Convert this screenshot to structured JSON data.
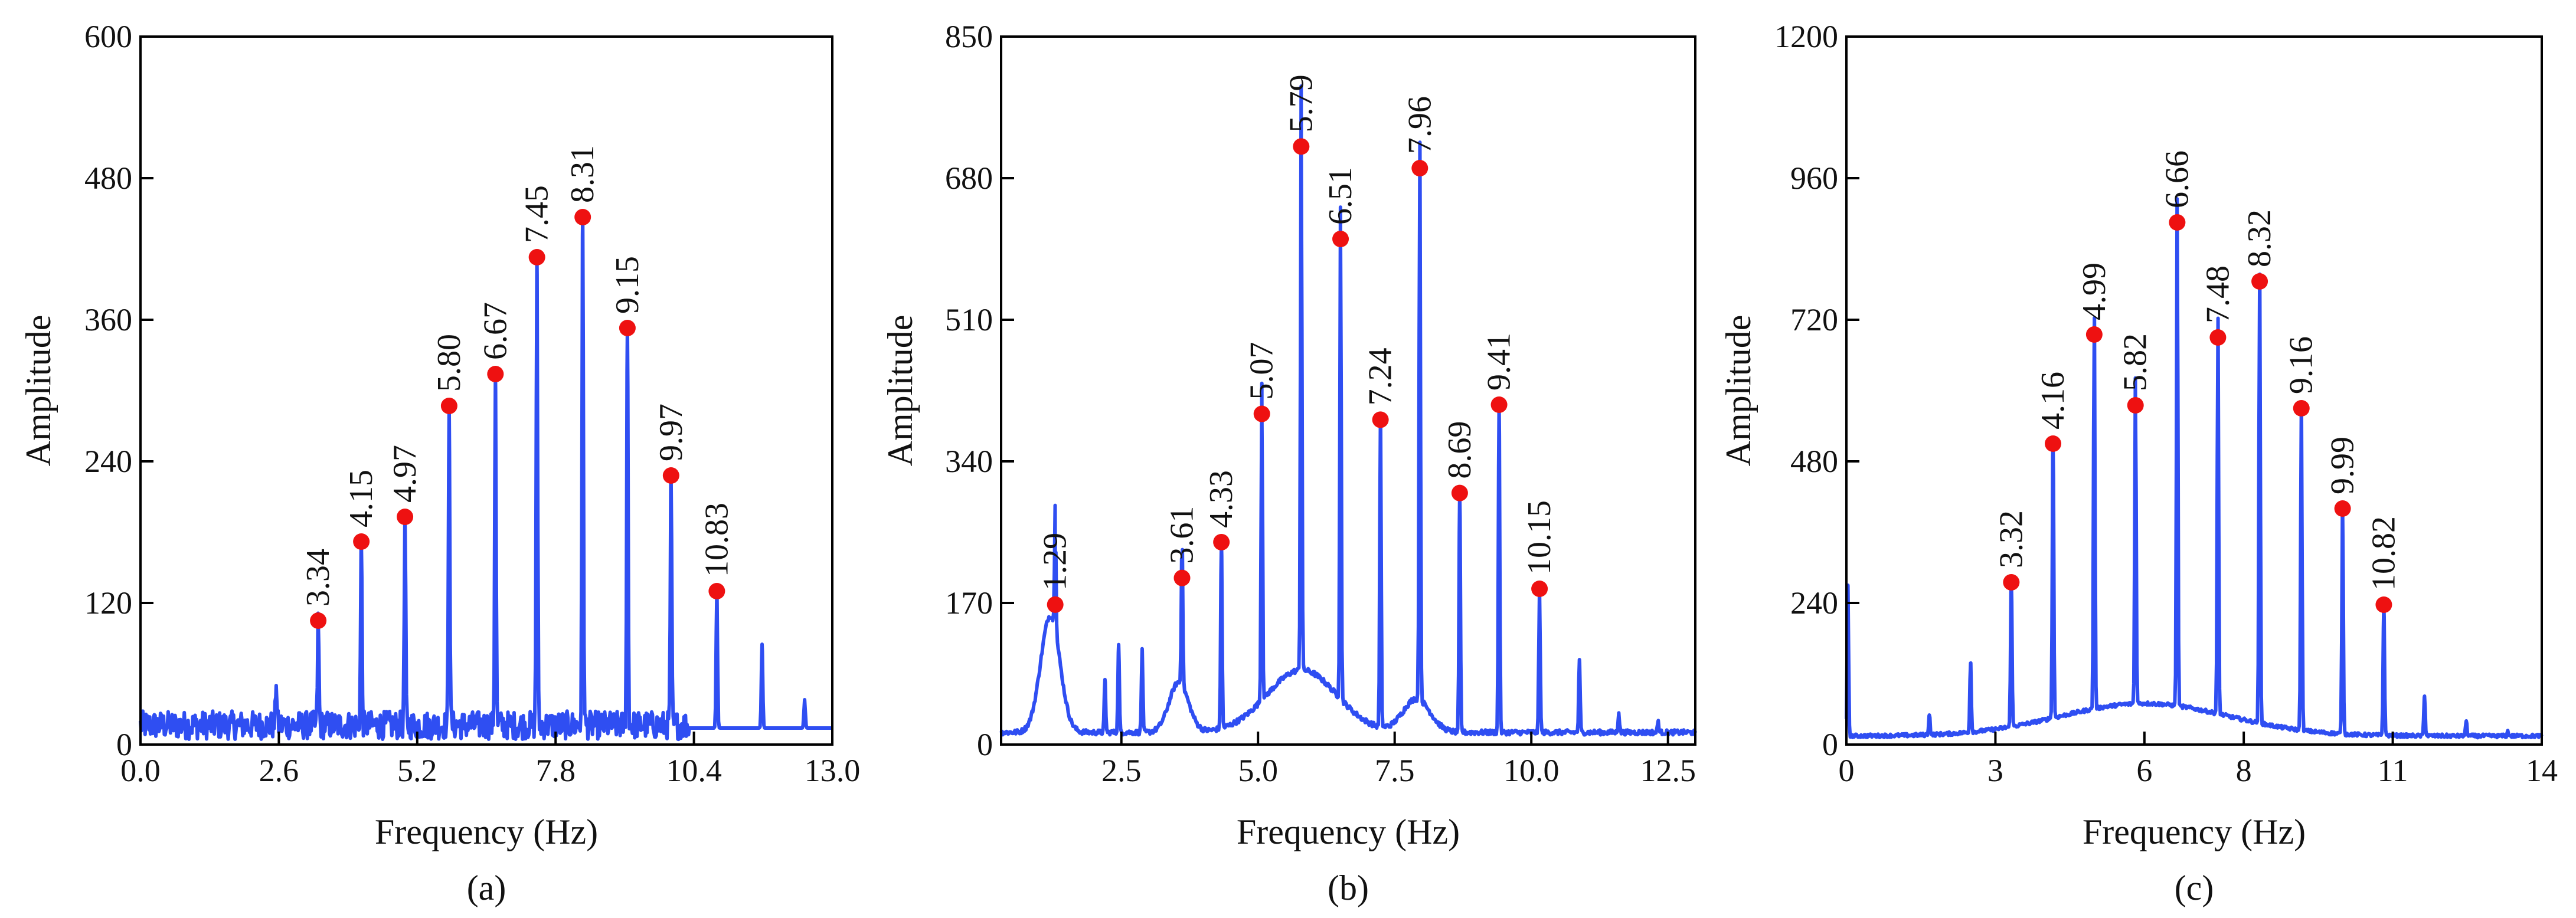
{
  "colors": {
    "line": "#2f4ef2",
    "peak": "#ee1111",
    "axis": "#000000"
  },
  "chart_data": [
    {
      "type": "line",
      "caption": "(a)",
      "xlabel": "Frequency (Hz)",
      "ylabel": "Amplitude",
      "xlim": [
        0,
        13
      ],
      "ylim": [
        0,
        600
      ],
      "xticks": [
        0,
        2.6,
        5.2,
        7.8,
        10.4,
        13
      ],
      "xtick_labels": [
        "0.0",
        "2.6",
        "5.2",
        "7.8",
        "10.4",
        "13.0"
      ],
      "yticks": [
        0,
        120,
        240,
        360,
        480,
        600
      ],
      "ytick_labels": [
        "0",
        "120",
        "240",
        "360",
        "480",
        "600"
      ],
      "peaks": [
        {
          "x": 3.34,
          "y": 105,
          "label": "3.34"
        },
        {
          "x": 4.15,
          "y": 172,
          "label": "4.15"
        },
        {
          "x": 4.97,
          "y": 193,
          "label": "4.97"
        },
        {
          "x": 5.8,
          "y": 287,
          "label": "5.80"
        },
        {
          "x": 6.67,
          "y": 314,
          "label": "6.67"
        },
        {
          "x": 7.45,
          "y": 413,
          "label": "7.45"
        },
        {
          "x": 8.31,
          "y": 447,
          "label": "8.31"
        },
        {
          "x": 9.15,
          "y": 353,
          "label": "9.15"
        },
        {
          "x": 9.97,
          "y": 228,
          "label": "9.97"
        },
        {
          "x": 10.83,
          "y": 130,
          "label": "10.83"
        }
      ],
      "minor_peaks": [
        {
          "x": 11.68,
          "y": 85
        },
        {
          "x": 12.48,
          "y": 38
        },
        {
          "x": 2.55,
          "y": 50
        }
      ],
      "baseline": {
        "level": 14,
        "noise": 12,
        "noise_end": 10.3
      }
    },
    {
      "type": "line",
      "caption": "(b)",
      "xlabel": "Frequency (Hz)",
      "ylabel": "Amplitude",
      "xlim": [
        0.3,
        13
      ],
      "ylim": [
        0,
        850
      ],
      "xticks": [
        2.5,
        5.0,
        7.5,
        10.0,
        12.5
      ],
      "xtick_labels": [
        "2.5",
        "5.0",
        "7.5",
        "10.0",
        "12.5"
      ],
      "yticks": [
        0,
        170,
        340,
        510,
        680,
        850
      ],
      "ytick_labels": [
        "0",
        "170",
        "340",
        "510",
        "680",
        "850"
      ],
      "peaks": [
        {
          "x": 1.29,
          "y": 168,
          "label": "1.29"
        },
        {
          "x": 3.61,
          "y": 200,
          "label": "3.61"
        },
        {
          "x": 4.33,
          "y": 243,
          "label": "4.33"
        },
        {
          "x": 5.07,
          "y": 397,
          "label": "5.07"
        },
        {
          "x": 5.79,
          "y": 718,
          "label": "5.79"
        },
        {
          "x": 6.51,
          "y": 607,
          "label": "6.51"
        },
        {
          "x": 7.24,
          "y": 390,
          "label": "7.24"
        },
        {
          "x": 7.96,
          "y": 692,
          "label": "7.96"
        },
        {
          "x": 8.69,
          "y": 302,
          "label": "8.69"
        },
        {
          "x": 9.41,
          "y": 408,
          "label": "9.41"
        },
        {
          "x": 10.15,
          "y": 187,
          "label": "10.15"
        }
      ],
      "minor_peaks": [
        {
          "x": 2.45,
          "y": 120
        },
        {
          "x": 2.88,
          "y": 115
        },
        {
          "x": 2.2,
          "y": 78
        },
        {
          "x": 10.88,
          "y": 102
        },
        {
          "x": 11.6,
          "y": 38
        },
        {
          "x": 12.32,
          "y": 28
        }
      ],
      "baseline": {
        "level": 14,
        "noise": 3,
        "noise_end": 13
      }
    },
    {
      "type": "line",
      "caption": "(c)",
      "xlabel": "Frequency (Hz)",
      "ylabel": "Amplitude",
      "xlim": [
        0,
        14
      ],
      "ylim": [
        0,
        1200
      ],
      "xticks": [
        0,
        3,
        6,
        8,
        11,
        14
      ],
      "xtick_labels": [
        "0",
        "3",
        "6",
        "8",
        "11",
        "14"
      ],
      "yticks": [
        0,
        240,
        480,
        720,
        960,
        1200
      ],
      "ytick_labels": [
        "0",
        "240",
        "480",
        "720",
        "960",
        "1200"
      ],
      "peaks": [
        {
          "x": 3.32,
          "y": 275,
          "label": "3.32"
        },
        {
          "x": 4.16,
          "y": 510,
          "label": "4.16"
        },
        {
          "x": 4.99,
          "y": 695,
          "label": "4.99"
        },
        {
          "x": 5.82,
          "y": 575,
          "label": "5.82"
        },
        {
          "x": 6.66,
          "y": 885,
          "label": "6.66"
        },
        {
          "x": 7.48,
          "y": 690,
          "label": "7.48"
        },
        {
          "x": 8.32,
          "y": 785,
          "label": "8.32"
        },
        {
          "x": 9.16,
          "y": 570,
          "label": "9.16"
        },
        {
          "x": 9.99,
          "y": 400,
          "label": "9.99"
        },
        {
          "x": 10.82,
          "y": 237,
          "label": "10.82"
        }
      ],
      "minor_peaks": [
        {
          "x": 0.03,
          "y": 270
        },
        {
          "x": 1.67,
          "y": 50
        },
        {
          "x": 2.5,
          "y": 138
        },
        {
          "x": 11.64,
          "y": 82
        },
        {
          "x": 12.48,
          "y": 40
        },
        {
          "x": 13.32,
          "y": 22
        }
      ],
      "baseline": {
        "level": 14,
        "noise": 3,
        "noise_end": 14
      }
    }
  ]
}
